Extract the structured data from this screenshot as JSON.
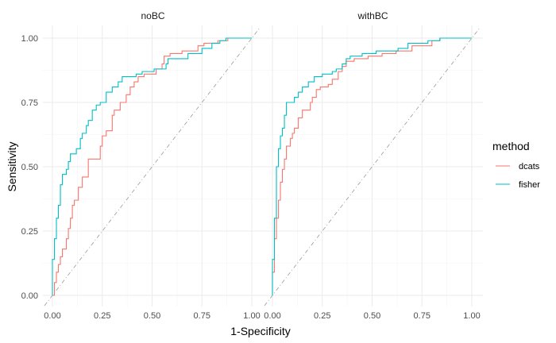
{
  "chart_data": {
    "type": "line",
    "xlabel": "1-Specificity",
    "ylabel": "Sensitivity",
    "xlim": [
      0,
      1
    ],
    "ylim": [
      0,
      1
    ],
    "x_ticks": [
      "0.00",
      "0.25",
      "0.50",
      "0.75",
      "1.00"
    ],
    "y_ticks": [
      "0.00",
      "0.25",
      "0.50",
      "0.75",
      "1.00"
    ],
    "grid": true,
    "diagonal_reference": true,
    "legend": {
      "title": "method",
      "placement": "right",
      "entries": [
        {
          "label": "dcats",
          "color": "#F8766D"
        },
        {
          "label": "fisher",
          "color": "#00BFC4"
        }
      ]
    },
    "panels": [
      {
        "strip": "noBC",
        "series": [
          {
            "method": "dcats",
            "color": "#F8766D",
            "points": [
              [
                0,
                0
              ],
              [
                0.01,
                0
              ],
              [
                0.01,
                0.05
              ],
              [
                0.02,
                0.05
              ],
              [
                0.02,
                0.09
              ],
              [
                0.03,
                0.09
              ],
              [
                0.03,
                0.12
              ],
              [
                0.04,
                0.12
              ],
              [
                0.04,
                0.15
              ],
              [
                0.05,
                0.15
              ],
              [
                0.05,
                0.18
              ],
              [
                0.07,
                0.18
              ],
              [
                0.07,
                0.22
              ],
              [
                0.08,
                0.22
              ],
              [
                0.08,
                0.26
              ],
              [
                0.09,
                0.26
              ],
              [
                0.09,
                0.3
              ],
              [
                0.1,
                0.3
              ],
              [
                0.1,
                0.35
              ],
              [
                0.11,
                0.35
              ],
              [
                0.11,
                0.37
              ],
              [
                0.13,
                0.37
              ],
              [
                0.13,
                0.42
              ],
              [
                0.15,
                0.42
              ],
              [
                0.15,
                0.46
              ],
              [
                0.18,
                0.46
              ],
              [
                0.18,
                0.53
              ],
              [
                0.24,
                0.53
              ],
              [
                0.24,
                0.58
              ],
              [
                0.25,
                0.58
              ],
              [
                0.25,
                0.62
              ],
              [
                0.27,
                0.62
              ],
              [
                0.27,
                0.64
              ],
              [
                0.3,
                0.64
              ],
              [
                0.3,
                0.7
              ],
              [
                0.31,
                0.7
              ],
              [
                0.31,
                0.72
              ],
              [
                0.34,
                0.72
              ],
              [
                0.34,
                0.75
              ],
              [
                0.37,
                0.75
              ],
              [
                0.37,
                0.78
              ],
              [
                0.39,
                0.78
              ],
              [
                0.39,
                0.81
              ],
              [
                0.41,
                0.81
              ],
              [
                0.41,
                0.83
              ],
              [
                0.43,
                0.83
              ],
              [
                0.43,
                0.85
              ],
              [
                0.46,
                0.85
              ],
              [
                0.46,
                0.86
              ],
              [
                0.52,
                0.86
              ],
              [
                0.52,
                0.88
              ],
              [
                0.55,
                0.88
              ],
              [
                0.55,
                0.9
              ],
              [
                0.56,
                0.9
              ],
              [
                0.56,
                0.93
              ],
              [
                0.59,
                0.93
              ],
              [
                0.59,
                0.94
              ],
              [
                0.65,
                0.94
              ],
              [
                0.65,
                0.95
              ],
              [
                0.73,
                0.95
              ],
              [
                0.73,
                0.97
              ],
              [
                0.76,
                0.97
              ],
              [
                0.76,
                0.98
              ],
              [
                0.83,
                0.98
              ],
              [
                0.83,
                0.99
              ],
              [
                0.88,
                0.99
              ],
              [
                0.88,
                1.0
              ],
              [
                1.0,
                1.0
              ]
            ]
          },
          {
            "method": "fisher",
            "color": "#00BFC4",
            "points": [
              [
                0,
                0
              ],
              [
                0,
                0.14
              ],
              [
                0.01,
                0.14
              ],
              [
                0.01,
                0.22
              ],
              [
                0.02,
                0.22
              ],
              [
                0.02,
                0.3
              ],
              [
                0.03,
                0.3
              ],
              [
                0.03,
                0.35
              ],
              [
                0.04,
                0.35
              ],
              [
                0.04,
                0.43
              ],
              [
                0.05,
                0.43
              ],
              [
                0.05,
                0.47
              ],
              [
                0.07,
                0.47
              ],
              [
                0.07,
                0.49
              ],
              [
                0.08,
                0.49
              ],
              [
                0.08,
                0.52
              ],
              [
                0.09,
                0.52
              ],
              [
                0.09,
                0.55
              ],
              [
                0.12,
                0.55
              ],
              [
                0.12,
                0.57
              ],
              [
                0.14,
                0.57
              ],
              [
                0.14,
                0.61
              ],
              [
                0.15,
                0.61
              ],
              [
                0.15,
                0.63
              ],
              [
                0.17,
                0.63
              ],
              [
                0.17,
                0.66
              ],
              [
                0.18,
                0.66
              ],
              [
                0.18,
                0.68
              ],
              [
                0.2,
                0.68
              ],
              [
                0.2,
                0.72
              ],
              [
                0.22,
                0.72
              ],
              [
                0.22,
                0.74
              ],
              [
                0.24,
                0.74
              ],
              [
                0.24,
                0.75
              ],
              [
                0.27,
                0.75
              ],
              [
                0.27,
                0.79
              ],
              [
                0.3,
                0.79
              ],
              [
                0.3,
                0.81
              ],
              [
                0.33,
                0.81
              ],
              [
                0.33,
                0.83
              ],
              [
                0.35,
                0.83
              ],
              [
                0.35,
                0.85
              ],
              [
                0.42,
                0.85
              ],
              [
                0.42,
                0.86
              ],
              [
                0.45,
                0.86
              ],
              [
                0.45,
                0.87
              ],
              [
                0.51,
                0.87
              ],
              [
                0.51,
                0.88
              ],
              [
                0.57,
                0.88
              ],
              [
                0.57,
                0.9
              ],
              [
                0.58,
                0.9
              ],
              [
                0.58,
                0.92
              ],
              [
                0.68,
                0.92
              ],
              [
                0.68,
                0.94
              ],
              [
                0.75,
                0.94
              ],
              [
                0.75,
                0.96
              ],
              [
                0.8,
                0.96
              ],
              [
                0.8,
                0.98
              ],
              [
                0.84,
                0.98
              ],
              [
                0.84,
                0.99
              ],
              [
                0.87,
                0.99
              ],
              [
                0.87,
                1.0
              ],
              [
                1.0,
                1.0
              ]
            ]
          }
        ]
      },
      {
        "strip": "withBC",
        "series": [
          {
            "method": "dcats",
            "color": "#F8766D",
            "points": [
              [
                0,
                0
              ],
              [
                0,
                0.09
              ],
              [
                0.01,
                0.09
              ],
              [
                0.01,
                0.22
              ],
              [
                0.02,
                0.22
              ],
              [
                0.02,
                0.3
              ],
              [
                0.03,
                0.3
              ],
              [
                0.03,
                0.37
              ],
              [
                0.04,
                0.37
              ],
              [
                0.04,
                0.44
              ],
              [
                0.05,
                0.44
              ],
              [
                0.05,
                0.49
              ],
              [
                0.06,
                0.49
              ],
              [
                0.06,
                0.53
              ],
              [
                0.07,
                0.53
              ],
              [
                0.07,
                0.58
              ],
              [
                0.09,
                0.58
              ],
              [
                0.09,
                0.61
              ],
              [
                0.1,
                0.61
              ],
              [
                0.1,
                0.63
              ],
              [
                0.11,
                0.63
              ],
              [
                0.11,
                0.65
              ],
              [
                0.13,
                0.65
              ],
              [
                0.13,
                0.69
              ],
              [
                0.15,
                0.69
              ],
              [
                0.15,
                0.72
              ],
              [
                0.19,
                0.72
              ],
              [
                0.19,
                0.75
              ],
              [
                0.2,
                0.75
              ],
              [
                0.2,
                0.77
              ],
              [
                0.22,
                0.77
              ],
              [
                0.22,
                0.8
              ],
              [
                0.24,
                0.8
              ],
              [
                0.24,
                0.81
              ],
              [
                0.28,
                0.81
              ],
              [
                0.28,
                0.82
              ],
              [
                0.3,
                0.82
              ],
              [
                0.3,
                0.84
              ],
              [
                0.33,
                0.84
              ],
              [
                0.33,
                0.87
              ],
              [
                0.35,
                0.87
              ],
              [
                0.35,
                0.89
              ],
              [
                0.37,
                0.89
              ],
              [
                0.37,
                0.91
              ],
              [
                0.41,
                0.91
              ],
              [
                0.41,
                0.92
              ],
              [
                0.48,
                0.92
              ],
              [
                0.48,
                0.93
              ],
              [
                0.55,
                0.93
              ],
              [
                0.55,
                0.94
              ],
              [
                0.62,
                0.94
              ],
              [
                0.62,
                0.95
              ],
              [
                0.7,
                0.95
              ],
              [
                0.7,
                0.97
              ],
              [
                0.8,
                0.97
              ],
              [
                0.8,
                0.99
              ],
              [
                0.84,
                0.99
              ],
              [
                0.84,
                1.0
              ],
              [
                1.0,
                1.0
              ]
            ]
          },
          {
            "method": "fisher",
            "color": "#00BFC4",
            "points": [
              [
                0,
                0
              ],
              [
                0,
                0.14
              ],
              [
                0.01,
                0.14
              ],
              [
                0.01,
                0.3
              ],
              [
                0.02,
                0.3
              ],
              [
                0.02,
                0.5
              ],
              [
                0.03,
                0.5
              ],
              [
                0.03,
                0.57
              ],
              [
                0.04,
                0.57
              ],
              [
                0.04,
                0.62
              ],
              [
                0.05,
                0.62
              ],
              [
                0.05,
                0.65
              ],
              [
                0.06,
                0.65
              ],
              [
                0.06,
                0.7
              ],
              [
                0.07,
                0.7
              ],
              [
                0.07,
                0.75
              ],
              [
                0.11,
                0.75
              ],
              [
                0.11,
                0.77
              ],
              [
                0.13,
                0.77
              ],
              [
                0.13,
                0.79
              ],
              [
                0.15,
                0.79
              ],
              [
                0.15,
                0.81
              ],
              [
                0.18,
                0.81
              ],
              [
                0.18,
                0.83
              ],
              [
                0.21,
                0.83
              ],
              [
                0.21,
                0.85
              ],
              [
                0.25,
                0.85
              ],
              [
                0.25,
                0.86
              ],
              [
                0.3,
                0.86
              ],
              [
                0.3,
                0.87
              ],
              [
                0.32,
                0.87
              ],
              [
                0.32,
                0.88
              ],
              [
                0.35,
                0.88
              ],
              [
                0.35,
                0.9
              ],
              [
                0.37,
                0.9
              ],
              [
                0.37,
                0.92
              ],
              [
                0.39,
                0.92
              ],
              [
                0.39,
                0.93
              ],
              [
                0.45,
                0.93
              ],
              [
                0.45,
                0.94
              ],
              [
                0.52,
                0.94
              ],
              [
                0.52,
                0.95
              ],
              [
                0.63,
                0.95
              ],
              [
                0.63,
                0.96
              ],
              [
                0.68,
                0.96
              ],
              [
                0.68,
                0.98
              ],
              [
                0.78,
                0.98
              ],
              [
                0.78,
                0.99
              ],
              [
                0.84,
                0.99
              ],
              [
                0.84,
                1.0
              ],
              [
                1.0,
                1.0
              ]
            ]
          }
        ]
      }
    ]
  }
}
